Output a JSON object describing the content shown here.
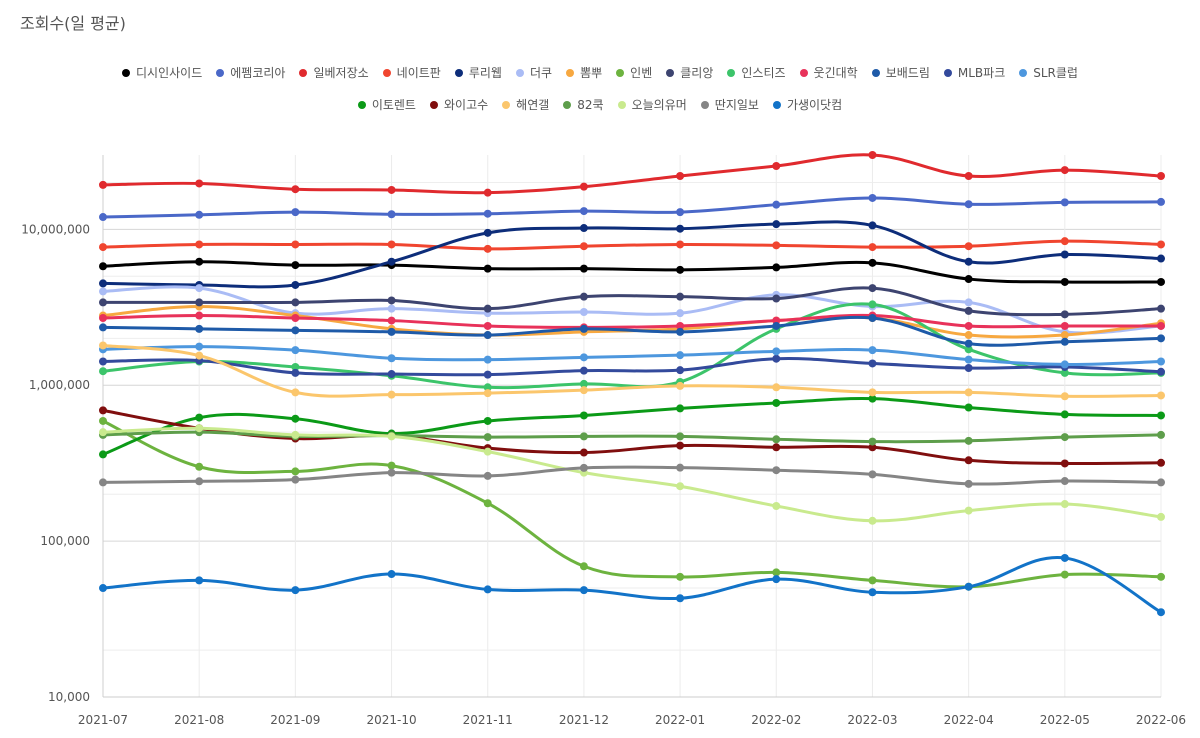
{
  "chart_data": {
    "type": "line",
    "title": "조회수(일 평균)",
    "xlabel": "",
    "ylabel": "",
    "yscale": "log",
    "ylim": [
      10000,
      30000000
    ],
    "y_ticks": [
      10000,
      100000,
      1000000,
      10000000
    ],
    "y_tick_labels": [
      "10,000",
      "100,000",
      "1,000,000",
      "10,000,000"
    ],
    "grid": true,
    "legend_position": "top",
    "categories": [
      "2021-07",
      "2021-08",
      "2021-09",
      "2021-10",
      "2021-11",
      "2021-12",
      "2022-01",
      "2022-02",
      "2022-03",
      "2022-04",
      "2022-05",
      "2022-06"
    ],
    "series": [
      {
        "name": "디시인사이드",
        "color": "#000000",
        "values": [
          5800000,
          6200000,
          5900000,
          5900000,
          5600000,
          5600000,
          5500000,
          5700000,
          6100000,
          4800000,
          4600000,
          4600000
        ]
      },
      {
        "name": "에펨코리아",
        "color": "#4a68c8",
        "values": [
          12000000,
          12400000,
          12900000,
          12500000,
          12600000,
          13100000,
          12900000,
          14400000,
          15900000,
          14500000,
          14900000,
          15000000
        ]
      },
      {
        "name": "일베저장소",
        "color": "#e02a2e",
        "values": [
          19300000,
          19700000,
          18100000,
          17900000,
          17200000,
          18800000,
          22000000,
          25500000,
          30000000,
          22000000,
          24000000,
          22000000
        ]
      },
      {
        "name": "네이트판",
        "color": "#f0452f",
        "values": [
          7700000,
          8000000,
          8000000,
          8000000,
          7500000,
          7800000,
          8000000,
          7900000,
          7700000,
          7800000,
          8400000,
          8000000
        ]
      },
      {
        "name": "루리웹",
        "color": "#0d2d7a",
        "values": [
          4500000,
          4400000,
          4400000,
          6200000,
          9500000,
          10200000,
          10100000,
          10800000,
          10600000,
          6200000,
          6900000,
          6500000
        ]
      },
      {
        "name": "더쿠",
        "color": "#aabcf5",
        "values": [
          4000000,
          4200000,
          2900000,
          3100000,
          2900000,
          2950000,
          2900000,
          3800000,
          3200000,
          3400000,
          2200000,
          2400000
        ]
      },
      {
        "name": "뽐뿌",
        "color": "#f7a840",
        "values": [
          2800000,
          3200000,
          2800000,
          2300000,
          2100000,
          2200000,
          2300000,
          2600000,
          2700000,
          2100000,
          2100000,
          2500000
        ]
      },
      {
        "name": "인벤",
        "color": "#6db33f",
        "values": [
          590000,
          300000,
          280000,
          305000,
          175000,
          69000,
          59000,
          63000,
          56000,
          51000,
          61000,
          59000
        ]
      },
      {
        "name": "클리앙",
        "color": "#3d4470",
        "values": [
          3400000,
          3400000,
          3400000,
          3500000,
          3100000,
          3700000,
          3700000,
          3600000,
          4200000,
          3000000,
          2850000,
          3100000
        ]
      },
      {
        "name": "인스티즈",
        "color": "#3cc46a",
        "values": [
          1230000,
          1420000,
          1310000,
          1150000,
          970000,
          1020000,
          1050000,
          2300000,
          3300000,
          1700000,
          1200000,
          1200000
        ]
      },
      {
        "name": "웃긴대학",
        "color": "#e8325a",
        "values": [
          2700000,
          2800000,
          2700000,
          2600000,
          2400000,
          2350000,
          2400000,
          2600000,
          2800000,
          2400000,
          2400000,
          2400000
        ]
      },
      {
        "name": "보배드림",
        "color": "#1e5aa8",
        "values": [
          2350000,
          2300000,
          2250000,
          2200000,
          2100000,
          2300000,
          2200000,
          2400000,
          2700000,
          1850000,
          1900000,
          2000000
        ]
      },
      {
        "name": "MLB파크",
        "color": "#334a9c",
        "values": [
          1420000,
          1440000,
          1200000,
          1180000,
          1170000,
          1240000,
          1250000,
          1480000,
          1380000,
          1290000,
          1310000,
          1220000
        ]
      },
      {
        "name": "SLR클럽",
        "color": "#4d97de",
        "values": [
          1700000,
          1770000,
          1680000,
          1490000,
          1460000,
          1510000,
          1560000,
          1650000,
          1680000,
          1460000,
          1360000,
          1420000
        ]
      },
      {
        "name": "이토렌트",
        "color": "#0b9a17",
        "values": [
          360000,
          620000,
          610000,
          490000,
          590000,
          640000,
          710000,
          770000,
          820000,
          720000,
          650000,
          640000
        ]
      },
      {
        "name": "와이고수",
        "color": "#800e0e",
        "values": [
          690000,
          530000,
          455000,
          475000,
          395000,
          370000,
          410000,
          400000,
          400000,
          330000,
          315000,
          318000
        ]
      },
      {
        "name": "해연갤",
        "color": "#fbc66c",
        "values": [
          1800000,
          1550000,
          900000,
          870000,
          890000,
          930000,
          990000,
          970000,
          900000,
          900000,
          850000,
          860000
        ]
      },
      {
        "name": "82쿡",
        "color": "#5e9e4b",
        "values": [
          480000,
          500000,
          470000,
          475000,
          465000,
          470000,
          470000,
          450000,
          435000,
          440000,
          465000,
          480000
        ]
      },
      {
        "name": "오늘의유머",
        "color": "#c9ea8e",
        "values": [
          500000,
          530000,
          480000,
          470000,
          375000,
          275000,
          225000,
          168000,
          135000,
          157000,
          173000,
          143000
        ]
      },
      {
        "name": "딴지일보",
        "color": "#858585",
        "values": [
          238000,
          242000,
          248000,
          275000,
          262000,
          295000,
          296000,
          285000,
          268000,
          233000,
          243000,
          238000
        ]
      },
      {
        "name": "가생이닷컴",
        "color": "#1273c8",
        "values": [
          50000,
          56000,
          48500,
          61500,
          49000,
          48500,
          43000,
          57000,
          47000,
          51000,
          78000,
          35000
        ]
      }
    ]
  }
}
